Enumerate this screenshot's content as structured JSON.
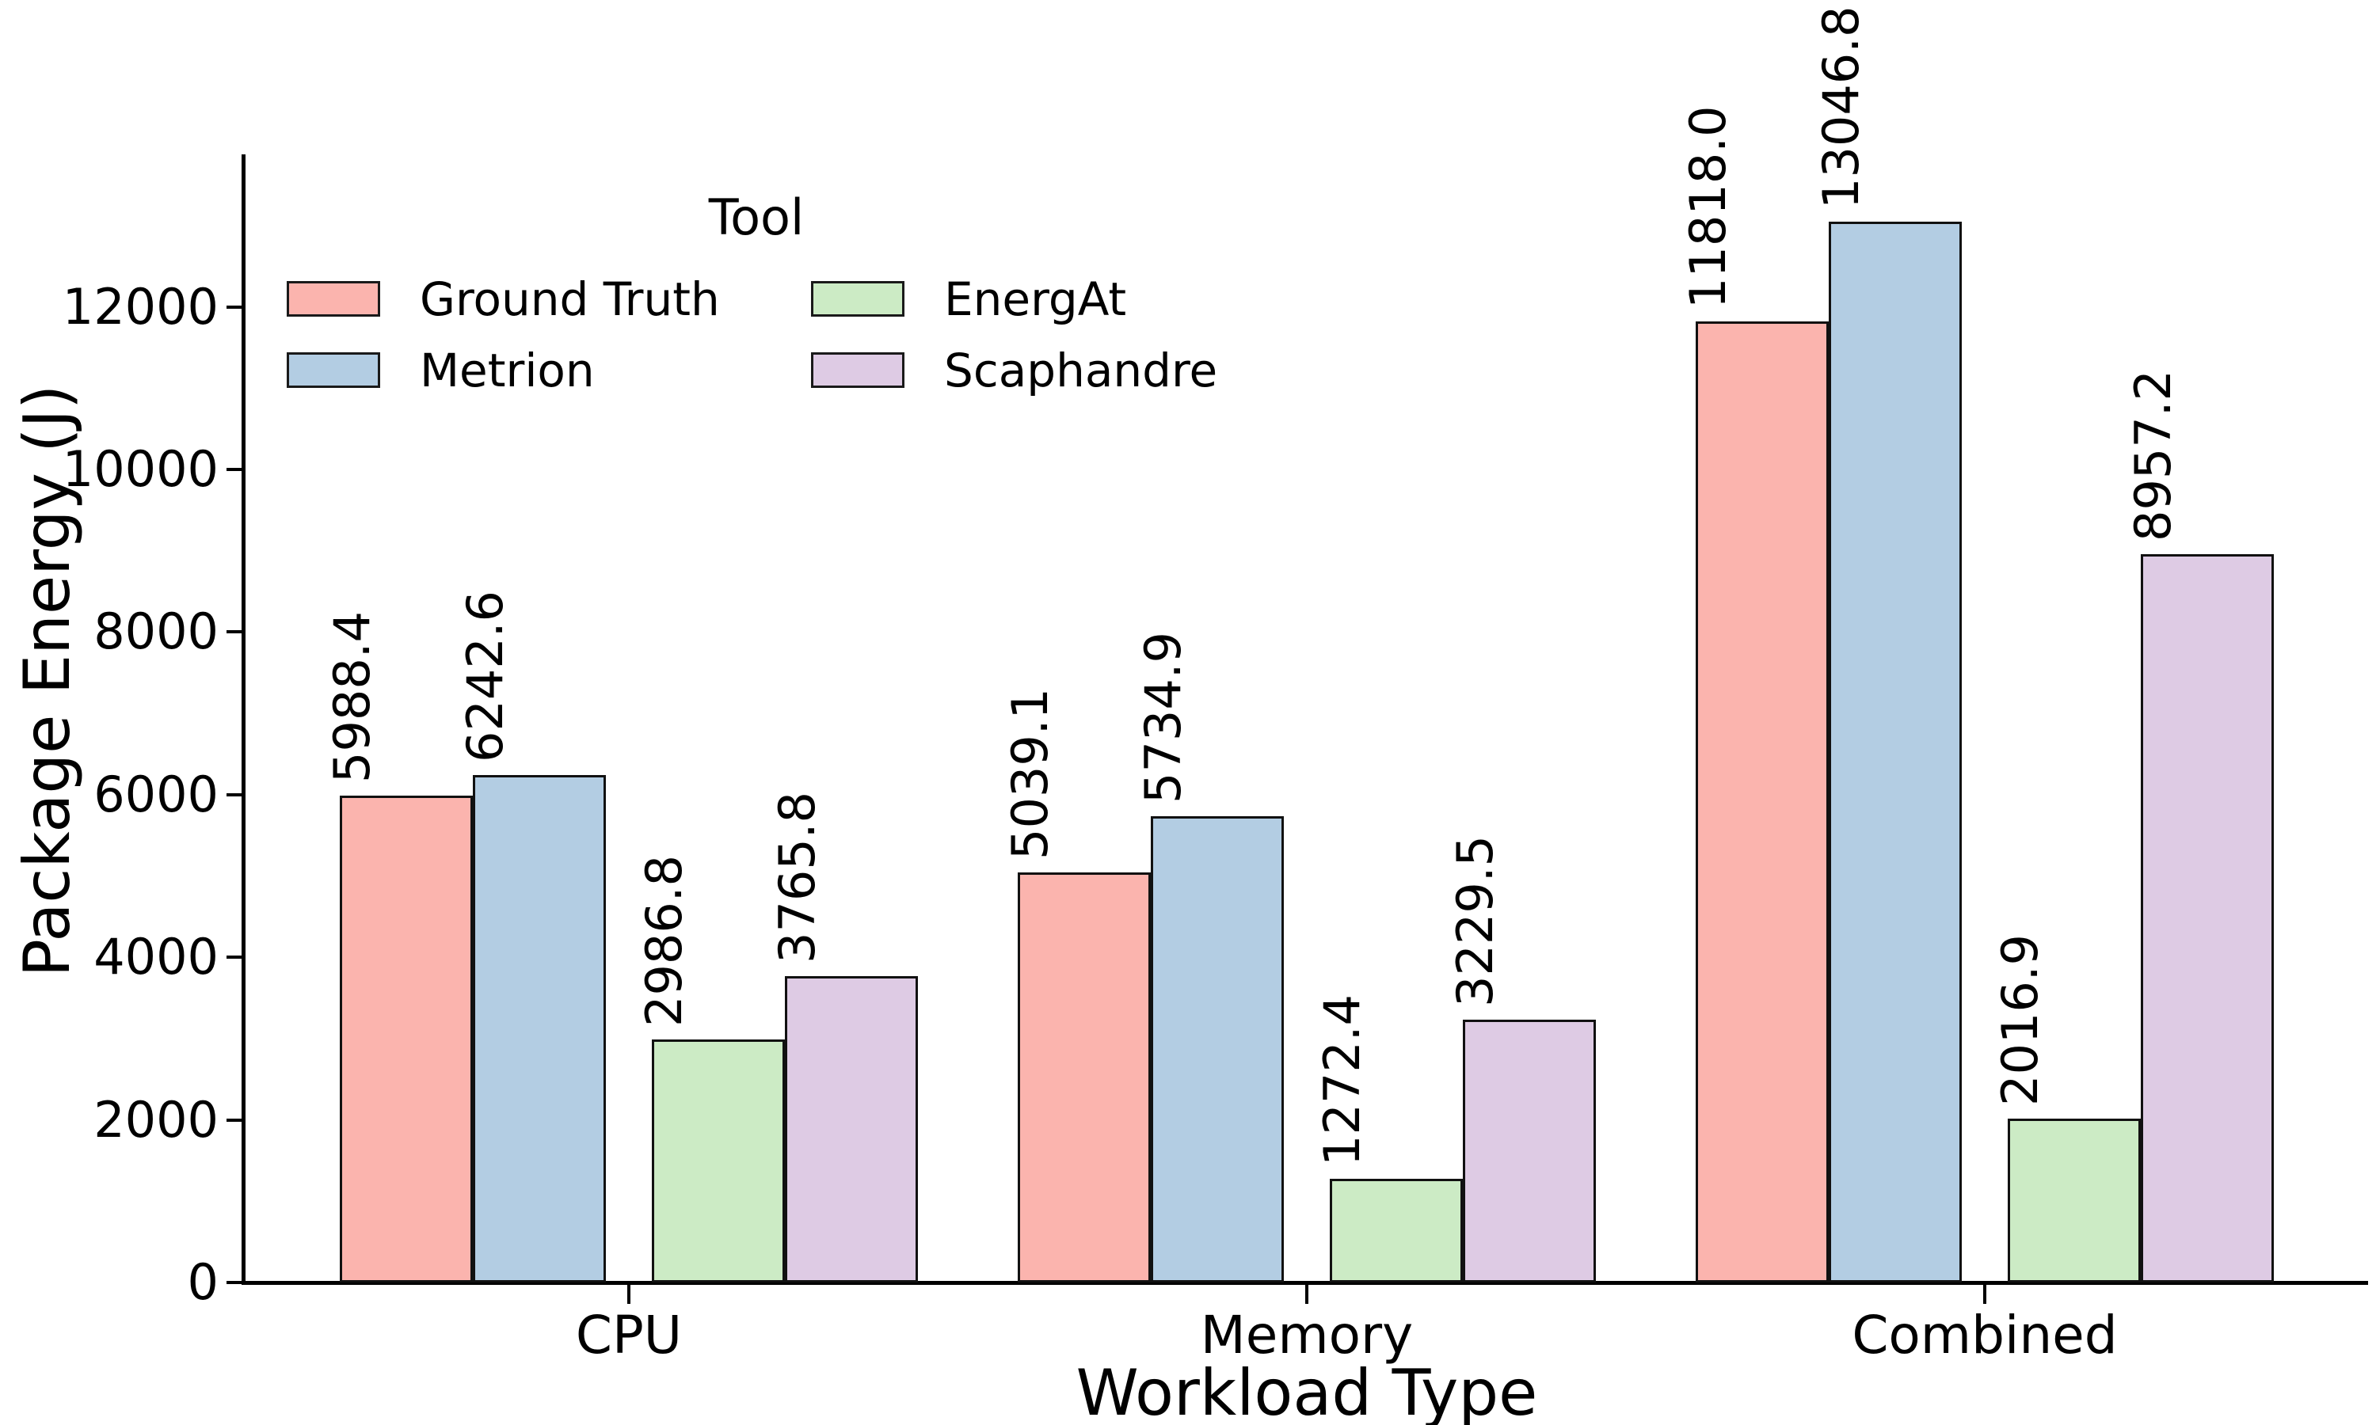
{
  "chart_data": {
    "type": "bar",
    "categories": [
      "CPU",
      "Memory",
      "Combined"
    ],
    "series": [
      {
        "name": "Ground Truth",
        "color": "#fbb4ae",
        "values": [
          5988.4,
          5039.1,
          11818.0
        ]
      },
      {
        "name": "Metrion",
        "color": "#b3cde3",
        "values": [
          6242.6,
          5734.9,
          13046.8
        ]
      },
      {
        "name": "EnergAt",
        "color": "#ccebc5",
        "values": [
          2986.8,
          1272.4,
          2016.9
        ]
      },
      {
        "name": "Scaphandre",
        "color": "#decbe4",
        "values": [
          3765.8,
          3229.5,
          8957.2
        ]
      }
    ],
    "bar_value_labels": [
      [
        "5988.4",
        "5039.1",
        "11818.0"
      ],
      [
        "6242.6",
        "5734.9",
        "13046.8"
      ],
      [
        "2986.8",
        "1272.4",
        "2016.9"
      ],
      [
        "3765.8",
        "3229.5",
        "8957.2"
      ]
    ],
    "title": "",
    "xlabel": "Workload Type",
    "ylabel": "Package Energy (J)",
    "legend_title": "Tool",
    "legend_position": "upper left, two columns, no frame",
    "ylim": [
      0,
      13875
    ],
    "yticks": [
      0,
      2000,
      4000,
      6000,
      8000,
      10000,
      12000
    ],
    "grid": false,
    "value_label_rotation": 90,
    "edge_color": "#111111",
    "text_color": "#000000",
    "background_color": "#ffffff"
  }
}
